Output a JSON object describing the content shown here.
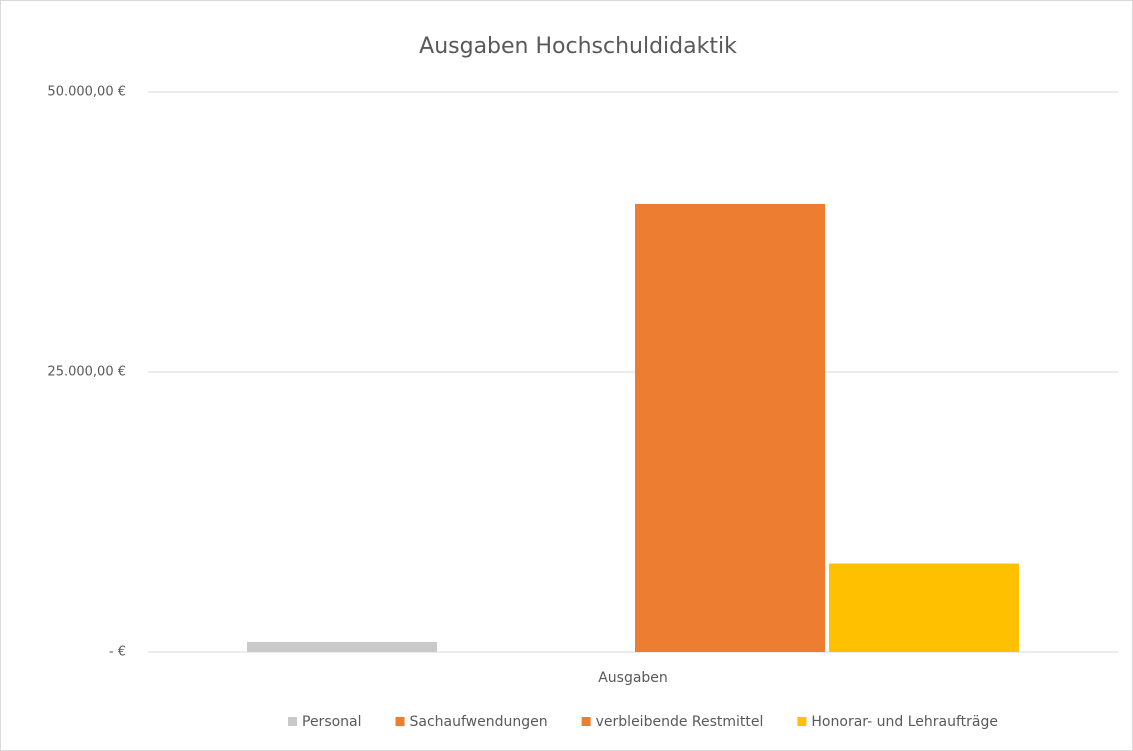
{
  "chart_data": {
    "type": "bar",
    "title": "Ausgaben Hochschuldidaktik",
    "categories": [
      "Ausgaben"
    ],
    "series": [
      {
        "name": "Personal",
        "color": "#c9c9c9",
        "values": [
          900
        ]
      },
      {
        "name": "Sachaufwendungen",
        "color": "#ed7d31",
        "values": [
          0
        ]
      },
      {
        "name": "verbleibende Restmittel",
        "color": "#ed7d31",
        "values": [
          40000
        ]
      },
      {
        "name": "Honorar- und Lehraufträge",
        "color": "#ffc000",
        "values": [
          7900
        ]
      }
    ],
    "ylim": [
      0,
      50000
    ],
    "yticks": [
      {
        "value": 0,
        "label": "-  €"
      },
      {
        "value": 25000,
        "label": "25.000,00 €"
      },
      {
        "value": 50000,
        "label": "50.000,00 €"
      }
    ],
    "grid": true,
    "legend": "bottom"
  }
}
